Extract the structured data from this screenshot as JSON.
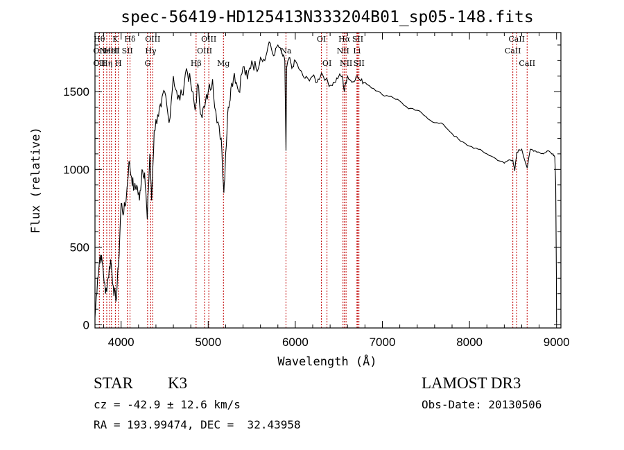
{
  "chart_data": {
    "type": "line",
    "title": "spec-56419-HD125413N333204B01_sp05-148.fits",
    "xlabel": "Wavelength (Å)",
    "ylabel": "Flux (relative)",
    "xlim": [
      3700,
      9050
    ],
    "ylim": [
      -20,
      1880
    ],
    "x_ticks": [
      4000,
      5000,
      6000,
      7000,
      8000,
      9000
    ],
    "y_ticks": [
      0,
      500,
      1000,
      1500
    ],
    "series": [
      {
        "name": "flux",
        "x": [
          3700,
          3730,
          3760,
          3790,
          3820,
          3850,
          3880,
          3910,
          3940,
          3970,
          4000,
          4030,
          4060,
          4090,
          4120,
          4150,
          4180,
          4210,
          4240,
          4270,
          4300,
          4330,
          4350,
          4380,
          4420,
          4460,
          4500,
          4550,
          4600,
          4650,
          4700,
          4750,
          4800,
          4850,
          4880,
          4920,
          4960,
          5000,
          5050,
          5100,
          5150,
          5180,
          5200,
          5230,
          5260,
          5300,
          5350,
          5400,
          5450,
          5500,
          5550,
          5600,
          5650,
          5700,
          5750,
          5800,
          5850,
          5880,
          5893,
          5900,
          5930,
          5960,
          6000,
          6050,
          6100,
          6150,
          6200,
          6250,
          6300,
          6350,
          6400,
          6450,
          6500,
          6540,
          6563,
          6580,
          6600,
          6650,
          6700,
          6750,
          6800,
          6900,
          7000,
          7100,
          7200,
          7300,
          7400,
          7500,
          7600,
          7700,
          7800,
          7900,
          8000,
          8100,
          8200,
          8300,
          8400,
          8450,
          8498,
          8520,
          8542,
          8560,
          8600,
          8662,
          8700,
          8750,
          8800,
          8850,
          8900,
          8960,
          8980,
          8990,
          8998,
          9000
        ],
        "y": [
          50,
          300,
          450,
          380,
          200,
          300,
          420,
          250,
          150,
          380,
          780,
          720,
          820,
          1050,
          950,
          870,
          900,
          800,
          1000,
          980,
          680,
          1100,
          800,
          1250,
          1350,
          1400,
          1500,
          1300,
          1600,
          1450,
          1480,
          1650,
          1550,
          1380,
          1550,
          1350,
          1400,
          1500,
          1580,
          1300,
          1200,
          850,
          1100,
          1400,
          1520,
          1620,
          1500,
          1660,
          1580,
          1700,
          1650,
          1720,
          1700,
          1820,
          1730,
          1800,
          1740,
          1700,
          1120,
          1650,
          1720,
          1650,
          1700,
          1640,
          1590,
          1580,
          1600,
          1560,
          1620,
          1580,
          1540,
          1560,
          1600,
          1600,
          1500,
          1560,
          1600,
          1560,
          1600,
          1570,
          1560,
          1520,
          1480,
          1470,
          1440,
          1390,
          1380,
          1340,
          1300,
          1290,
          1230,
          1180,
          1150,
          1130,
          1100,
          1070,
          1040,
          1060,
          1060,
          990,
          1100,
          1120,
          1130,
          1010,
          1130,
          1120,
          1110,
          1100,
          1120,
          1100,
          1080,
          900,
          300,
          20
        ]
      }
    ],
    "line_markers": [
      {
        "wl": 3750,
        "labels": [
          "Hθ",
          "OII",
          "OII"
        ],
        "rows": [
          0,
          1,
          2
        ]
      },
      {
        "wl": 3798,
        "labels": [],
        "rows": []
      },
      {
        "wl": 3835,
        "labels": [
          "Hη"
        ],
        "rows": [
          2
        ]
      },
      {
        "wl": 3869,
        "labels": [
          "NeIII"
        ],
        "rows": [
          1
        ]
      },
      {
        "wl": 3889,
        "labels": [
          "HeI"
        ],
        "rows": [
          1
        ]
      },
      {
        "wl": 3934,
        "labels": [
          "K"
        ],
        "rows": [
          0
        ]
      },
      {
        "wl": 3969,
        "labels": [
          "H"
        ],
        "rows": [
          2
        ]
      },
      {
        "wl": 4072,
        "labels": [
          "SII"
        ],
        "rows": [
          1
        ]
      },
      {
        "wl": 4102,
        "labels": [
          "Hδ"
        ],
        "rows": [
          0
        ]
      },
      {
        "wl": 4304,
        "labels": [
          "G"
        ],
        "rows": [
          2
        ]
      },
      {
        "wl": 4340,
        "labels": [
          "Hγ"
        ],
        "rows": [
          1
        ]
      },
      {
        "wl": 4363,
        "labels": [
          "OIII"
        ],
        "rows": [
          0
        ]
      },
      {
        "wl": 4861,
        "labels": [
          "Hβ"
        ],
        "rows": [
          2
        ]
      },
      {
        "wl": 4959,
        "labels": [
          "OIII"
        ],
        "rows": [
          1
        ]
      },
      {
        "wl": 5007,
        "labels": [
          "OIII"
        ],
        "rows": [
          0
        ]
      },
      {
        "wl": 5175,
        "labels": [
          "Mg"
        ],
        "rows": [
          2
        ]
      },
      {
        "wl": 5893,
        "labels": [
          "Na"
        ],
        "rows": [
          1
        ]
      },
      {
        "wl": 6300,
        "labels": [
          "OI"
        ],
        "rows": [
          0
        ]
      },
      {
        "wl": 6364,
        "labels": [
          "OI"
        ],
        "rows": [
          2
        ]
      },
      {
        "wl": 6548,
        "labels": [
          "NII"
        ],
        "rows": [
          1
        ]
      },
      {
        "wl": 6563,
        "labels": [
          "Hα"
        ],
        "rows": [
          0
        ]
      },
      {
        "wl": 6583,
        "labels": [
          "NII"
        ],
        "rows": [
          2
        ]
      },
      {
        "wl": 6708,
        "labels": [
          "Li"
        ],
        "rows": [
          1
        ]
      },
      {
        "wl": 6717,
        "labels": [
          "SII"
        ],
        "rows": [
          0
        ]
      },
      {
        "wl": 6731,
        "labels": [
          "SII"
        ],
        "rows": [
          2
        ]
      },
      {
        "wl": 8498,
        "labels": [
          "CaII"
        ],
        "rows": [
          1
        ]
      },
      {
        "wl": 8542,
        "labels": [
          "CaII"
        ],
        "rows": [
          0
        ]
      },
      {
        "wl": 8662,
        "labels": [
          "CaII"
        ],
        "rows": [
          2
        ]
      }
    ],
    "colors": {
      "spectrum": "#000000",
      "marker": "#c00000",
      "axes": "#000000"
    }
  },
  "footer": {
    "object_type": "STAR",
    "subclass": "K3",
    "survey": "LAMOST DR3",
    "cz": "cz = -42.9 ± 12.6 km/s",
    "obs_date": "Obs-Date: 20130506",
    "radec": "RA = 193.99474, DEC =  32.43958"
  }
}
